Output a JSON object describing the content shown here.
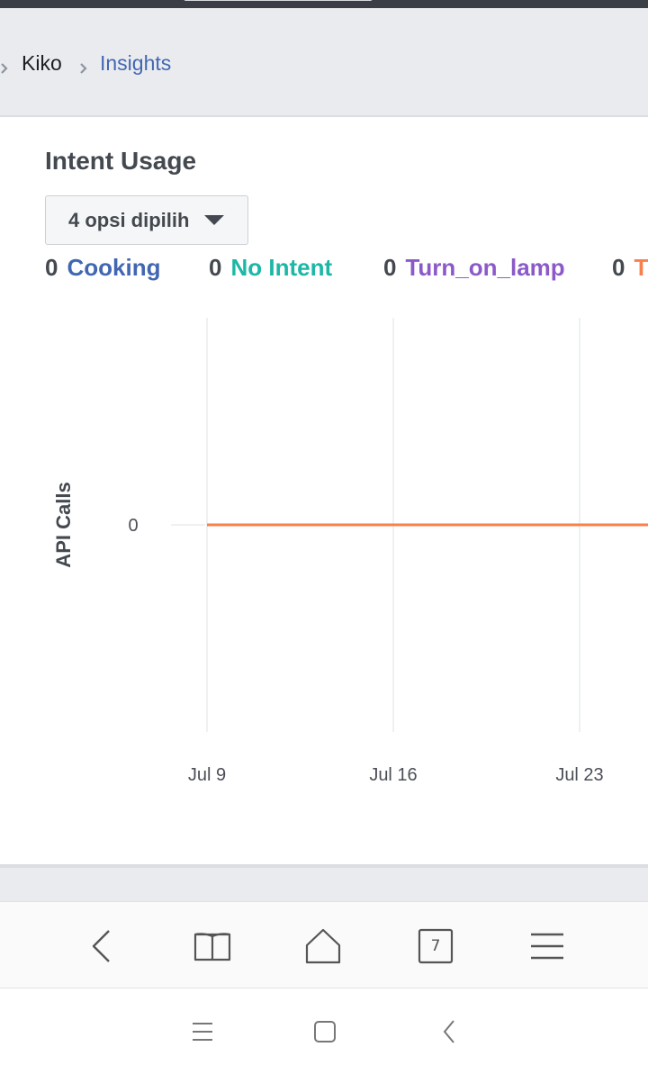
{
  "breadcrumb": {
    "items": [
      {
        "label": "Kiko"
      },
      {
        "label": "Insights"
      }
    ]
  },
  "card": {
    "title": "Intent Usage",
    "filter": {
      "selected_label": "4 opsi dipilih"
    },
    "legend": [
      {
        "count": "0",
        "name": "Cooking",
        "color": "#4267b2"
      },
      {
        "count": "0",
        "name": "No Intent",
        "color": "#1cb7a5"
      },
      {
        "count": "0",
        "name": "Turn_on_lamp",
        "color": "#8c5ac8"
      },
      {
        "count": "0",
        "name": "T",
        "color": "#f7804d"
      }
    ]
  },
  "chart_data": {
    "type": "line",
    "ylabel": "API Calls",
    "xlabel": "",
    "x_ticks": [
      "Jul 9",
      "Jul 16",
      "Jul 23"
    ],
    "y_ticks": [
      "0"
    ],
    "grid": "vertical",
    "series": [
      {
        "name": "T",
        "color": "#f7804d",
        "points": [
          {
            "x": "Jul 9",
            "y": 0
          },
          {
            "x": "Jul 16",
            "y": 0
          },
          {
            "x": "Jul 23",
            "y": 0
          }
        ]
      }
    ]
  },
  "browser_toolbar": {
    "buttons": [
      "back-icon",
      "bookmarks-icon",
      "home-icon",
      "tabs-icon",
      "menu-icon"
    ],
    "tab_count": "7"
  },
  "system_nav": {
    "buttons": [
      "recents-icon",
      "home-square-icon",
      "back-chevron-icon"
    ]
  }
}
